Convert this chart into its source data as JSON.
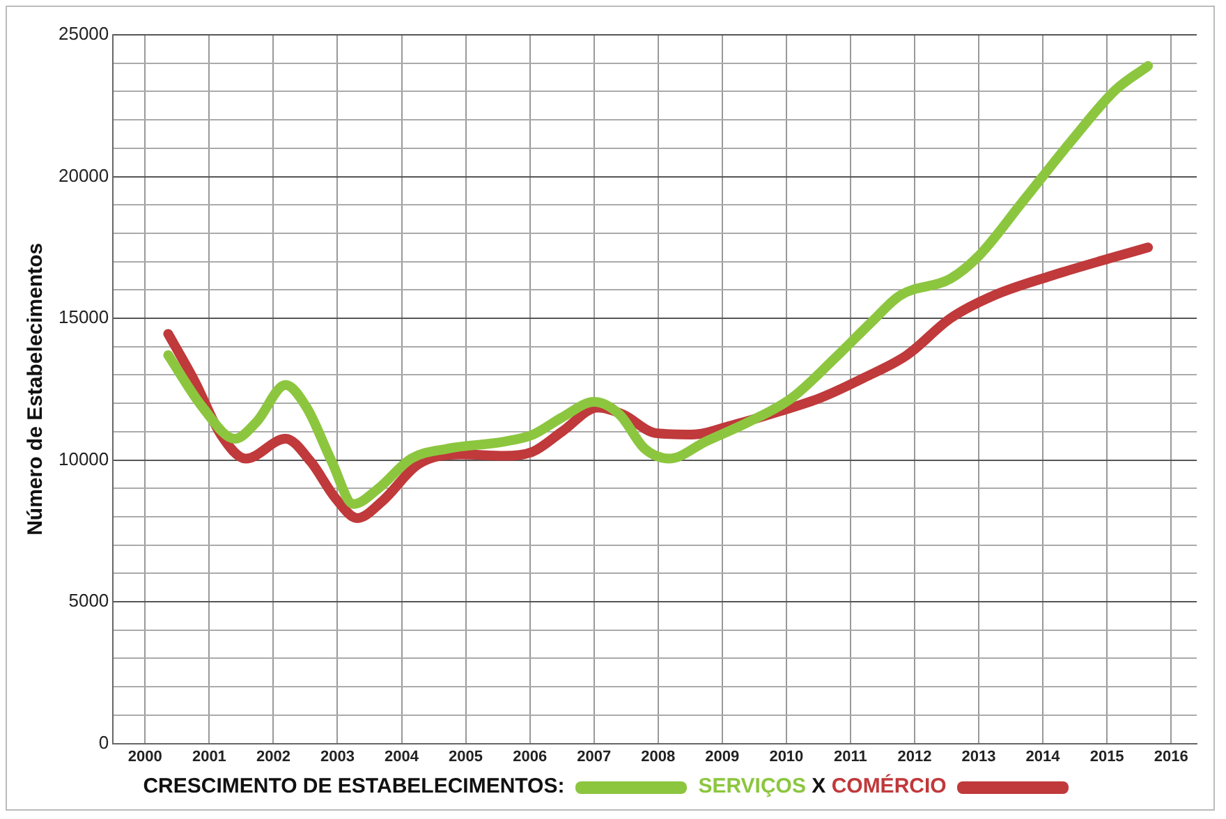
{
  "chart_data": {
    "type": "line",
    "ylabel": "Número de Estabelecimentos",
    "legend_title": "CRESCIMENTO DE ESTABELECIMENTOS:",
    "annotations": [
      "X"
    ],
    "xlim": [
      1999.5,
      2016.4
    ],
    "xticks": [
      2000,
      2001,
      2002,
      2003,
      2004,
      2005,
      2006,
      2007,
      2008,
      2009,
      2010,
      2011,
      2012,
      2013,
      2014,
      2015,
      2016
    ],
    "ylim": [
      0,
      25000
    ],
    "yticks": [
      0,
      {
        "value": 1000,
        "label": null
      },
      {
        "value": 2000,
        "label": null
      },
      {
        "value": 3000,
        "label": null
      },
      {
        "value": 4000,
        "label": null
      },
      5000,
      {
        "value": 6000,
        "label": null
      },
      {
        "value": 7000,
        "label": null
      },
      {
        "value": 8000,
        "label": null
      },
      {
        "value": 9000,
        "label": null
      },
      10000,
      {
        "value": 11000,
        "label": null
      },
      {
        "value": 12000,
        "label": null
      },
      {
        "value": 13000,
        "label": null
      },
      {
        "value": 14000,
        "label": null
      },
      15000,
      {
        "value": 16000,
        "label": null
      },
      {
        "value": 17000,
        "label": null
      },
      {
        "value": 18000,
        "label": null
      },
      {
        "value": 19000,
        "label": null
      },
      20000,
      {
        "value": 21000,
        "label": null
      },
      {
        "value": 22000,
        "label": null
      },
      {
        "value": 23000,
        "label": null
      },
      {
        "value": 24000,
        "label": null
      },
      25000
    ],
    "grid": true,
    "legend": "bottom",
    "marker": "none",
    "line_style": "solid",
    "series": [
      {
        "name": "SERVIÇOS",
        "color": "#8cc63f",
        "x": [
          2000.36,
          2000.9,
          2001.4,
          2001.74,
          2002.19,
          2002.52,
          2002.91,
          2003.25,
          2003.64,
          2004.15,
          2004.71,
          2005.6,
          2006.05,
          2006.5,
          2007.0,
          2007.4,
          2007.79,
          2008.18,
          2008.74,
          2009.42,
          2010.09,
          2010.76,
          2011.32,
          2011.77,
          2012.56,
          2013.0,
          2013.68,
          2014.46,
          2015.13,
          2015.64
        ],
        "values": [
          13700,
          11850,
          10750,
          11350,
          12650,
          11850,
          9950,
          8450,
          9000,
          10050,
          10400,
          10650,
          10900,
          11500,
          12050,
          11600,
          10400,
          10050,
          10650,
          11350,
          12200,
          13600,
          14850,
          15800,
          16400,
          17200,
          19100,
          21300,
          23050,
          23900
        ]
      },
      {
        "name": "COMÉRCIO",
        "color": "#c0393b",
        "x": [
          2000.36,
          2000.78,
          2001.18,
          2001.57,
          2002.19,
          2002.58,
          2002.97,
          2003.31,
          2003.7,
          2004.26,
          2004.93,
          2005.6,
          2006.05,
          2006.5,
          2007.06,
          2007.46,
          2007.96,
          2008.52,
          2009.19,
          2009.87,
          2010.54,
          2011.21,
          2011.88,
          2012.56,
          2013.23,
          2014.13,
          2015.02,
          2015.64
        ],
        "values": [
          14450,
          12750,
          10900,
          10050,
          10750,
          9950,
          8650,
          7950,
          8550,
          9850,
          10200,
          10150,
          10300,
          11000,
          11850,
          11600,
          10950,
          10900,
          11250,
          11700,
          12200,
          12900,
          13700,
          15000,
          15800,
          16500,
          17100,
          17500
        ]
      }
    ]
  }
}
